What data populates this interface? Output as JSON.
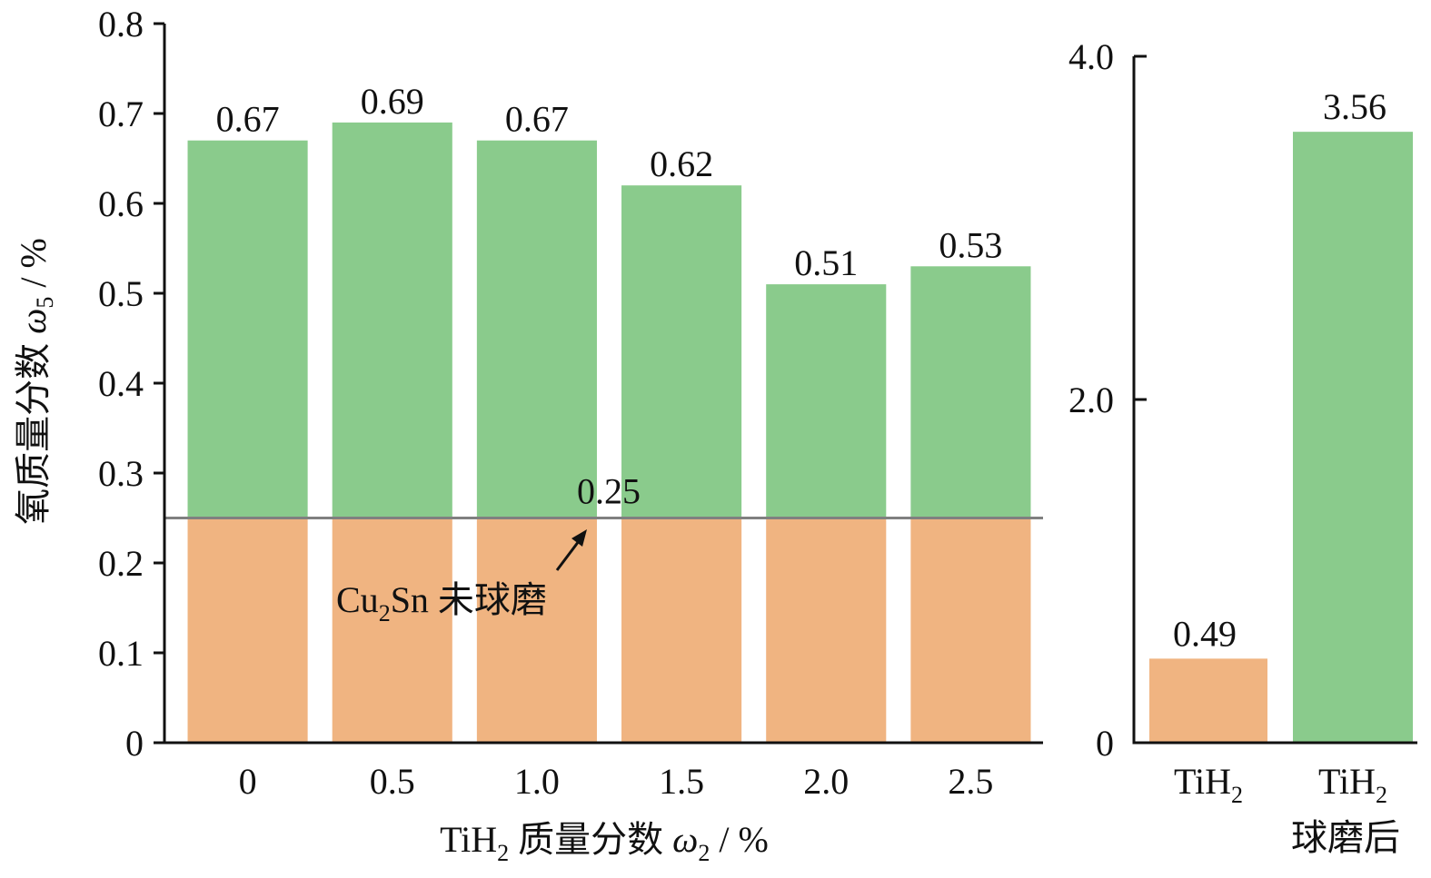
{
  "chart_data": [
    {
      "type": "bar",
      "stacked": true,
      "categories": [
        "0",
        "0.5",
        "1.0",
        "1.5",
        "2.0",
        "2.5"
      ],
      "totals": [
        0.67,
        0.69,
        0.67,
        0.62,
        0.51,
        0.53
      ],
      "total_labels": [
        "0.67",
        "0.69",
        "0.67",
        "0.62",
        "0.51",
        "0.53"
      ],
      "baseline_value": 0.25,
      "baseline_label": "0.25",
      "annotation": {
        "prefix": "Cu",
        "subscript": "2",
        "suffix": "Sn 未球磨"
      },
      "ylabel": {
        "text": "氧质量分数 ",
        "symbol": "ω",
        "subscript": "5",
        "unit": " / %"
      },
      "xlabel": {
        "prefix": "TiH",
        "subscript": "2",
        "text": " 质量分数 ",
        "symbol": "ω",
        "symbol_subscript": "2",
        "unit": " / %"
      },
      "ylim": [
        0,
        0.8
      ],
      "yticks": [
        0,
        0.1,
        0.2,
        0.3,
        0.4,
        0.5,
        0.6,
        0.7,
        0.8
      ],
      "ytick_labels": [
        "0",
        "0.1",
        "0.2",
        "0.3",
        "0.4",
        "0.5",
        "0.6",
        "0.7",
        "0.8"
      ],
      "colors": {
        "base": "#F0B481",
        "increment": "#8ACB8C",
        "baseline": "#808080",
        "axis": "#111111"
      },
      "grid": false,
      "legend": "none"
    },
    {
      "type": "bar",
      "categories": [
        {
          "prefix": "TiH",
          "subscript": "2",
          "line2": ""
        },
        {
          "prefix": "TiH",
          "subscript": "2",
          "line2": "球磨后"
        }
      ],
      "values": [
        0.49,
        3.56
      ],
      "value_labels": [
        "0.49",
        "3.56"
      ],
      "bar_colors": [
        "#F0B481",
        "#8ACB8C"
      ],
      "ylim": [
        0,
        4.0
      ],
      "yticks": [
        0,
        2.0,
        4.0
      ],
      "ytick_labels": [
        "0",
        "2.0",
        "4.0"
      ],
      "grid": false,
      "legend": "none"
    }
  ]
}
